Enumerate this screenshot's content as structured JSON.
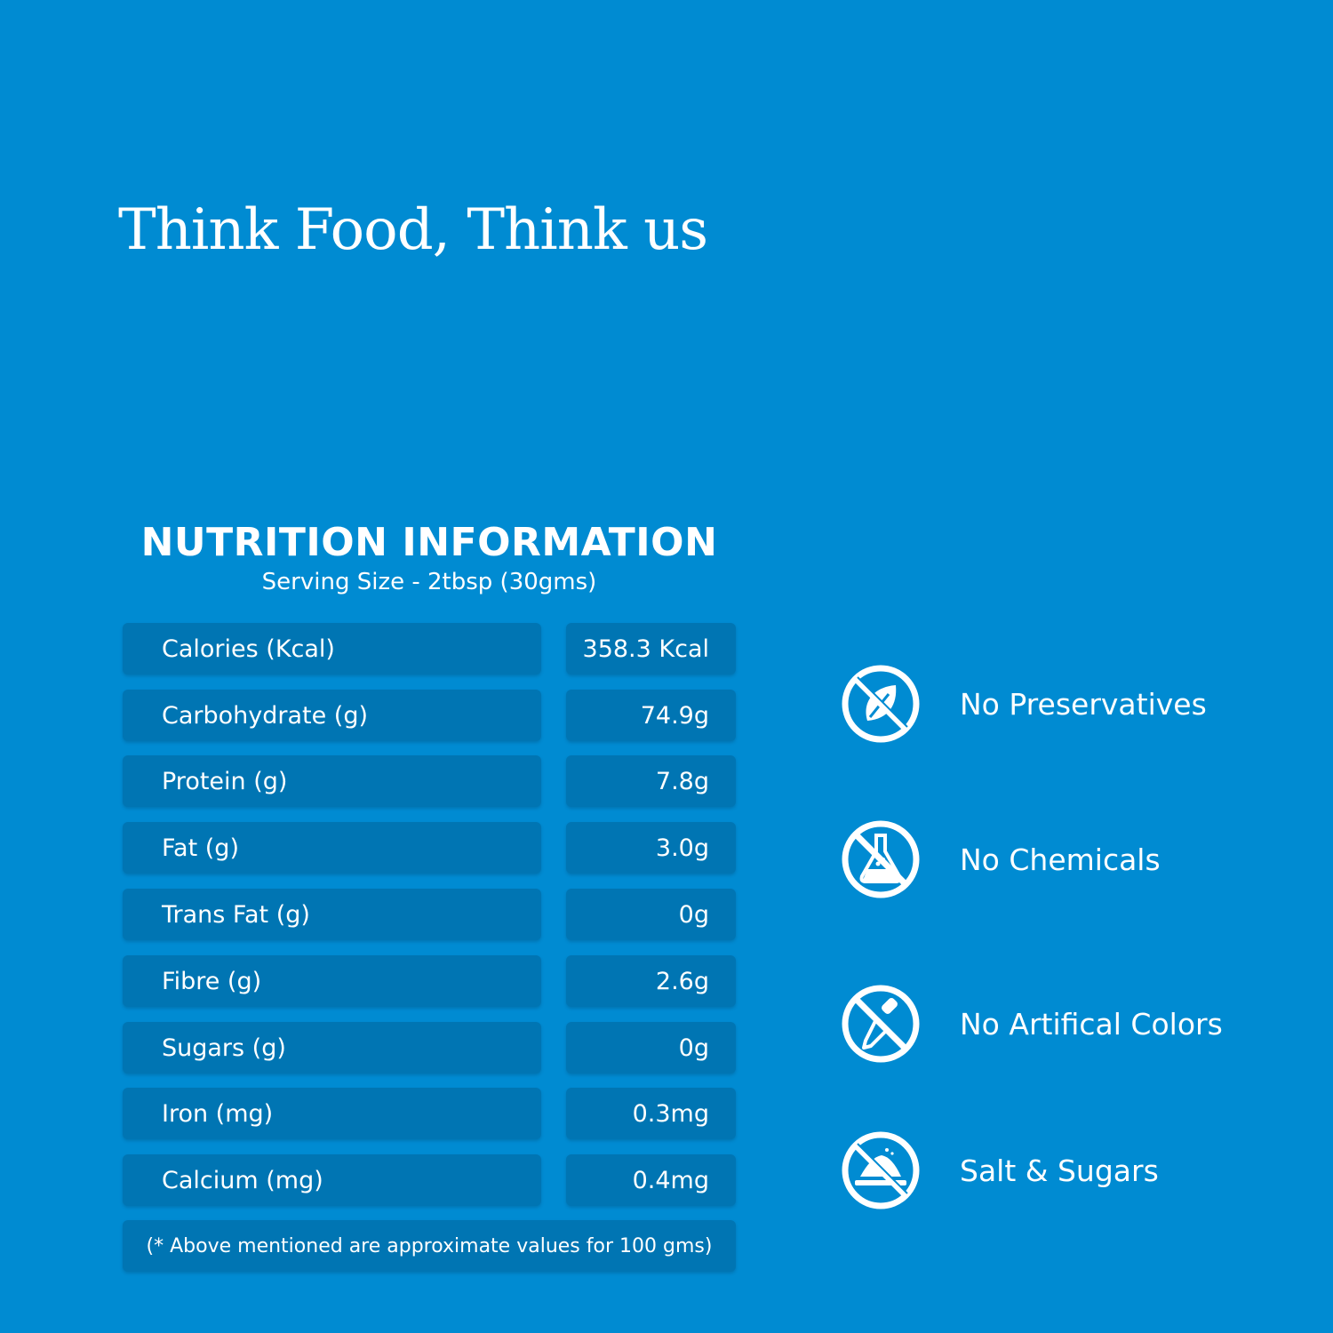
{
  "tagline": "Think Food, Think us",
  "nutrition": {
    "title": "NUTRITION INFORMATION",
    "serving": "Serving Size - 2tbsp (30gms)",
    "rows": [
      {
        "name": "Calories (Kcal)",
        "value": "358.3 Kcal"
      },
      {
        "name": "Carbohydrate (g)",
        "value": "74.9g"
      },
      {
        "name": "Protein (g)",
        "value": "7.8g"
      },
      {
        "name": "Fat (g)",
        "value": "3.0g"
      },
      {
        "name": "Trans Fat (g)",
        "value": "0g"
      },
      {
        "name": "Fibre (g)",
        "value": "2.6g"
      },
      {
        "name": "Sugars (g)",
        "value": "0g"
      },
      {
        "name": "Iron (mg)",
        "value": "0.3mg"
      },
      {
        "name": "Calcium (mg)",
        "value": "0.4mg"
      }
    ],
    "note": "(* Above mentioned are approximate values for 100 gms)"
  },
  "features": [
    {
      "label": "No Preservatives",
      "icon": "no-leaf-icon"
    },
    {
      "label": "No Chemicals",
      "icon": "no-flask-icon"
    },
    {
      "label": "No Artifical Colors",
      "icon": "no-dropper-icon"
    },
    {
      "label": "Salt & Sugars",
      "icon": "no-salt-icon"
    }
  ],
  "colors": {
    "background": "#008BD2",
    "cell": "#0075B3",
    "text": "#FFFFFF"
  }
}
